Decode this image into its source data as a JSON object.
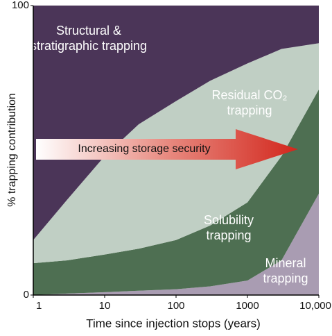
{
  "chart_data": {
    "type": "stacked-area",
    "x_label": "Time since injection stops (years)",
    "y_label": "% trapping contribution",
    "annotation": "Increasing storage security",
    "log_x": true,
    "x": [
      1,
      3,
      10,
      30,
      100,
      300,
      1000,
      3000,
      10000
    ],
    "xlim": [
      1,
      10000
    ],
    "xticks": [
      1,
      10,
      100,
      1000,
      {
        "value": 10000,
        "label": "10,000"
      }
    ],
    "ylim": [
      0,
      100
    ],
    "yticks": [
      0,
      100
    ],
    "series": [
      {
        "name": "Mineral trapping",
        "color": "#a99cb2",
        "values": [
          0,
          0.5,
          1,
          1.5,
          2,
          3,
          5,
          12,
          35
        ]
      },
      {
        "name": "Solubility trapping",
        "color": "#4e6f52",
        "values": [
          11,
          11.5,
          13,
          14.5,
          17,
          21,
          27,
          36,
          36
        ]
      },
      {
        "name": "Residual CO₂ trapping",
        "color": "#c0cfc4",
        "values": [
          8,
          21,
          34,
          43,
          48,
          50,
          48,
          37,
          16
        ]
      },
      {
        "name": "Structural & stratigraphic trapping",
        "color": "#4b3558",
        "values": [
          81,
          67,
          52,
          41,
          33,
          26,
          20,
          15,
          13
        ]
      }
    ]
  }
}
